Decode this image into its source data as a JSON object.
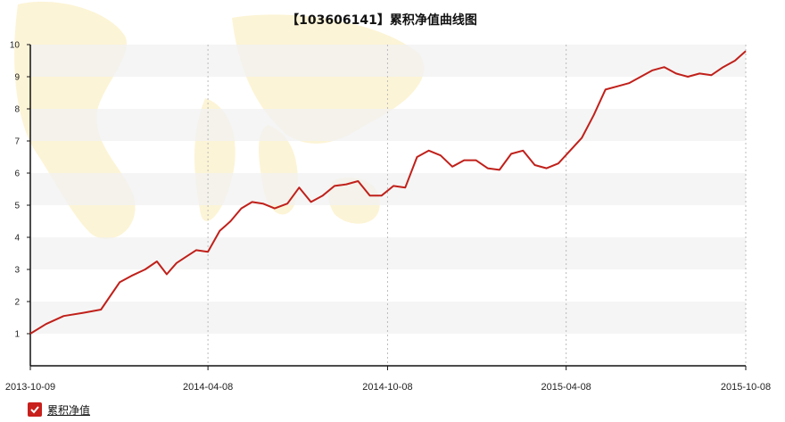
{
  "chart_data": {
    "type": "line",
    "title": "【103606141】累积净值曲线图",
    "xlabel": "",
    "ylabel": "",
    "ylim": [
      0,
      10
    ],
    "y_ticks": [
      1,
      2,
      3,
      4,
      5,
      6,
      7,
      8,
      9,
      10
    ],
    "x_tick_labels": [
      "2013-10-09",
      "2014-04-08",
      "2014-10-08",
      "2015-04-08",
      "2015-10-08"
    ],
    "grid": "alternating horizontal bands, dashed vertical lines",
    "legend": "bottom-left",
    "series": [
      {
        "name": "累积净值",
        "color": "#c0201a",
        "x": [
          "2013-10-09",
          "2013-10-25",
          "2013-11-12",
          "2013-12-02",
          "2013-12-20",
          "2014-01-08",
          "2014-01-20",
          "2014-02-03",
          "2014-02-15",
          "2014-02-25",
          "2014-03-07",
          "2014-03-17",
          "2014-03-27",
          "2014-04-08",
          "2014-04-20",
          "2014-05-01",
          "2014-05-12",
          "2014-05-23",
          "2014-06-03",
          "2014-06-15",
          "2014-06-28",
          "2014-07-10",
          "2014-07-22",
          "2014-08-03",
          "2014-08-15",
          "2014-08-27",
          "2014-09-08",
          "2014-09-20",
          "2014-10-02",
          "2014-10-14",
          "2014-10-26",
          "2014-11-07",
          "2014-11-19",
          "2014-12-01",
          "2014-12-13",
          "2014-12-25",
          "2015-01-06",
          "2015-01-18",
          "2015-01-30",
          "2015-02-11",
          "2015-02-23",
          "2015-03-07",
          "2015-03-19",
          "2015-03-31",
          "2015-04-12",
          "2015-04-24",
          "2015-05-06",
          "2015-05-18",
          "2015-05-30",
          "2015-06-11",
          "2015-06-23",
          "2015-07-05",
          "2015-07-17",
          "2015-07-29",
          "2015-08-10",
          "2015-08-22",
          "2015-09-03",
          "2015-09-15",
          "2015-09-27",
          "2015-10-08"
        ],
        "values": [
          1.0,
          1.3,
          1.55,
          1.65,
          1.75,
          2.6,
          2.8,
          3.0,
          3.25,
          2.85,
          3.2,
          3.4,
          3.6,
          3.55,
          4.2,
          4.5,
          4.9,
          5.1,
          5.05,
          4.9,
          5.05,
          5.55,
          5.1,
          5.3,
          5.6,
          5.65,
          5.75,
          5.3,
          5.3,
          5.6,
          5.55,
          6.5,
          6.7,
          6.55,
          6.2,
          6.4,
          6.4,
          6.15,
          6.1,
          6.6,
          6.7,
          6.25,
          6.15,
          6.3,
          6.7,
          7.1,
          7.8,
          8.6,
          8.7,
          8.8,
          9.0,
          9.2,
          9.3,
          9.1,
          9.0,
          9.1,
          9.05,
          9.3,
          9.5,
          9.8
        ]
      }
    ]
  }
}
